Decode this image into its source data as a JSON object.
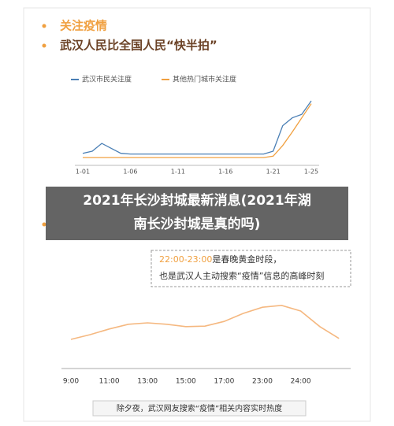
{
  "header": {
    "tag": "关注疫情",
    "title": "武汉人民比全国人民“快半拍”"
  },
  "chart_data": [
    {
      "type": "line",
      "ylim": [
        0,
        100
      ],
      "categories": [
        "1-01",
        null,
        null,
        null,
        null,
        "1-06",
        null,
        null,
        null,
        null,
        "1-11",
        null,
        null,
        null,
        null,
        "1-16",
        null,
        null,
        null,
        null,
        "1-21",
        null,
        null,
        null,
        "1-25"
      ],
      "series": [
        {
          "name": "武汉市民关注度",
          "color": "#4a7fb5",
          "values": [
            17,
            20,
            31,
            24,
            17,
            16,
            16,
            16,
            16,
            16,
            16,
            16,
            16,
            16,
            16,
            16,
            16,
            16,
            16,
            16,
            20,
            56,
            67,
            72,
            91
          ]
        },
        {
          "name": "其他热门城市关注度",
          "color": "#f0a040",
          "values": [
            11,
            11,
            11,
            11,
            11,
            11,
            11,
            11,
            11,
            11,
            11,
            11,
            11,
            11,
            11,
            11,
            11,
            11,
            11,
            11,
            13,
            28,
            47,
            67,
            87
          ]
        }
      ]
    },
    {
      "type": "line",
      "ylim": [
        0,
        100
      ],
      "color": "#f5b880",
      "annotation": {
        "highlight": "22:00-23:00",
        "line1": "是春晚黄金时段，",
        "line2": "也是武汉人主动搜索“疫情”信息的高峰时刻"
      },
      "categories": [
        "9:00",
        null,
        "11:00",
        null,
        "13:00",
        null,
        "15:00",
        null,
        "17:00",
        null,
        "23:00",
        null,
        "24:00",
        null,
        null
      ],
      "values": [
        15,
        25,
        37,
        47,
        50,
        47,
        42,
        43,
        53,
        70,
        83,
        87,
        75,
        42,
        17
      ],
      "caption": "除夕夜，武汉网友搜索“疫情”相关内容实时热度"
    }
  ],
  "overlay": {
    "lines": [
      "2021年长沙封城最新消息(2021年湖",
      "南长沙封城是真的吗)"
    ]
  }
}
